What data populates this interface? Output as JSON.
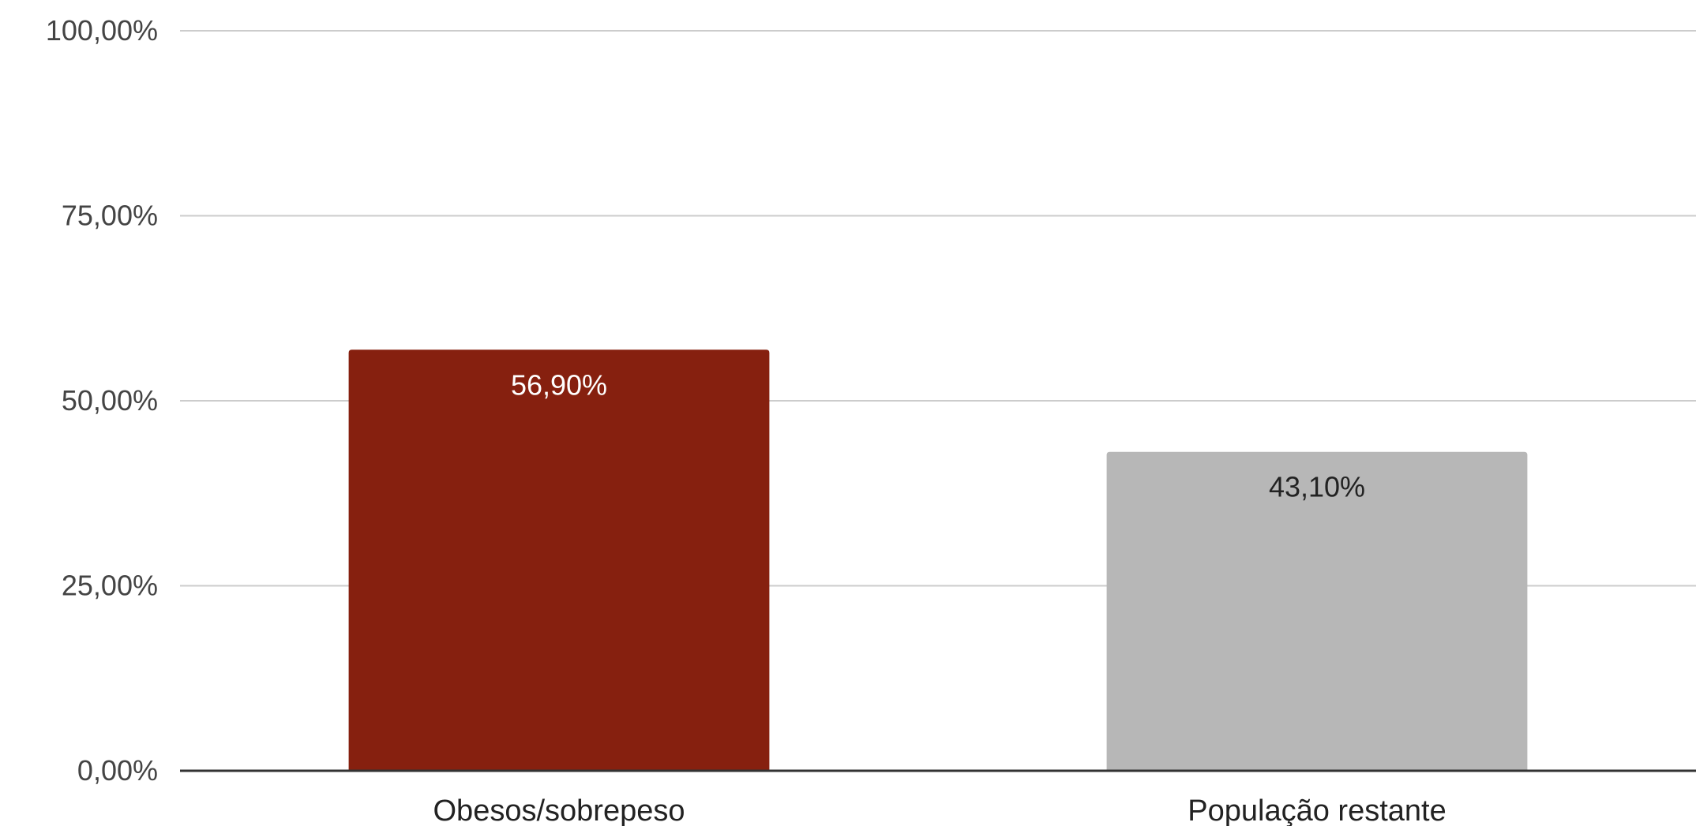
{
  "chart_data": {
    "type": "bar",
    "title": "",
    "xlabel": "",
    "ylabel": "",
    "categories": [
      "Obesos/sobrepeso",
      "População restante"
    ],
    "values": [
      56.9,
      43.1
    ],
    "data_labels": [
      "56,90%",
      "43,10%"
    ],
    "bar_colors": [
      "#86200f",
      "#b7b7b7"
    ],
    "data_label_colors": [
      "#ffffff",
      "#222222"
    ],
    "ylim": [
      0,
      100
    ],
    "yticks": [
      0,
      25,
      50,
      75,
      100
    ],
    "ytick_labels": [
      "0,00%",
      "25,00%",
      "50,00%",
      "75,00%",
      "100,00%"
    ],
    "grid": true,
    "legend": "none"
  }
}
